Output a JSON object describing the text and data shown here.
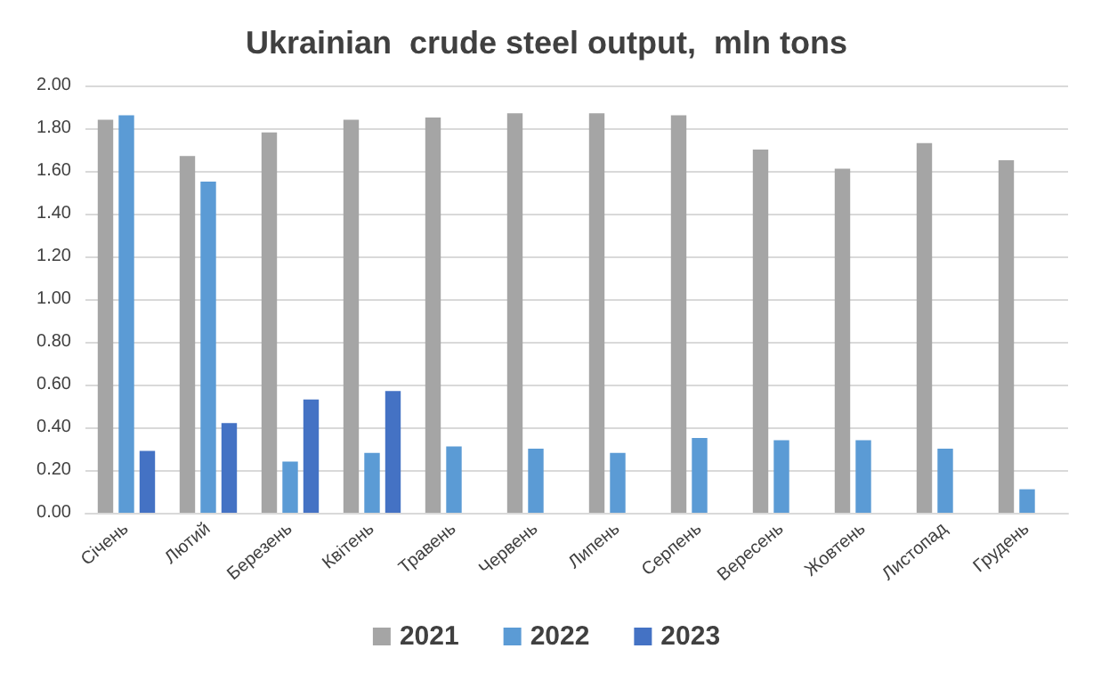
{
  "chart_data": {
    "type": "bar",
    "title": "Ukrainian  crude steel output,  mln tons",
    "categories": [
      "Січень",
      "Лютий",
      "Березень",
      "Квітень",
      "Травень",
      "Червень",
      "Липень",
      "Серпень",
      "Вересень",
      "Жовтень",
      "Листопад",
      "Грудень"
    ],
    "series": [
      {
        "name": "2021",
        "color": "#a5a5a5",
        "values": [
          1.84,
          1.67,
          1.78,
          1.84,
          1.85,
          1.87,
          1.87,
          1.86,
          1.7,
          1.61,
          1.73,
          1.65
        ]
      },
      {
        "name": "2022",
        "color": "#5b9bd5",
        "values": [
          1.86,
          1.55,
          0.24,
          0.28,
          0.31,
          0.3,
          0.28,
          0.35,
          0.34,
          0.34,
          0.3,
          0.11
        ]
      },
      {
        "name": "2023",
        "color": "#4472c4",
        "values": [
          0.29,
          0.42,
          0.53,
          0.57,
          null,
          null,
          null,
          null,
          null,
          null,
          null,
          null
        ]
      }
    ],
    "ylim": [
      0,
      2
    ],
    "yticks": [
      {
        "value": 0,
        "label": "0.00"
      },
      {
        "value": 0.2,
        "label": "0.20"
      },
      {
        "value": 0.4,
        "label": "0.40"
      },
      {
        "value": 0.6,
        "label": "0.60"
      },
      {
        "value": 0.8,
        "label": "0.80"
      },
      {
        "value": 1,
        "label": "1.00"
      },
      {
        "value": 1.2,
        "label": "1.20"
      },
      {
        "value": 1.4,
        "label": "1.40"
      },
      {
        "value": 1.6,
        "label": "1.60"
      },
      {
        "value": 1.8,
        "label": "1.80"
      },
      {
        "value": 2,
        "label": "2.00"
      }
    ],
    "grid": "y",
    "legend": "bottom"
  }
}
